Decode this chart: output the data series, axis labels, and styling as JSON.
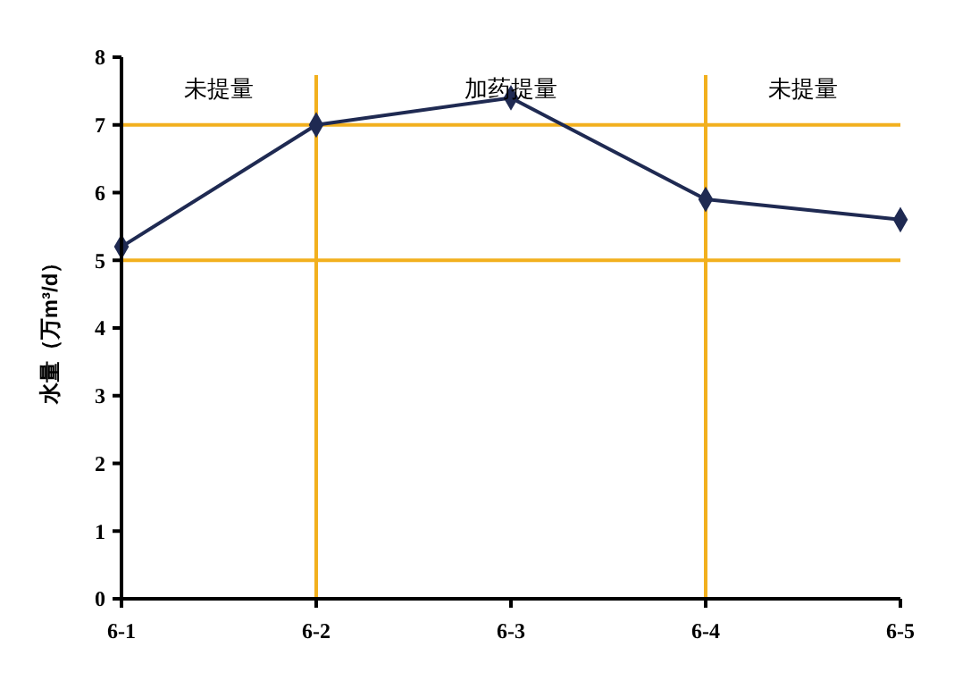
{
  "chart_data": {
    "type": "line",
    "ylabel": "水量（万m³/d）",
    "categories": [
      "6-1",
      "6-2",
      "6-3",
      "6-4",
      "6-5"
    ],
    "series": [
      {
        "color": "#1f2a52",
        "values": [
          5.2,
          7.0,
          7.4,
          5.9,
          5.6
        ]
      }
    ],
    "ylim": [
      0,
      8
    ],
    "yticks": [
      0,
      1,
      2,
      3,
      4,
      5,
      6,
      7,
      8
    ],
    "marker": "diamond",
    "line_style": "solid",
    "grid": false,
    "ref_lines": [
      {
        "axis": "y",
        "value": 7,
        "color": "#f2b01e"
      },
      {
        "axis": "y",
        "value": 5,
        "color": "#f2b01e"
      },
      {
        "axis": "x",
        "value": "6-2",
        "color": "#f2b01e"
      },
      {
        "axis": "x",
        "value": "6-4",
        "color": "#f2b01e"
      }
    ],
    "annotations": [
      "未提量",
      "加药提量",
      "未提量"
    ]
  }
}
